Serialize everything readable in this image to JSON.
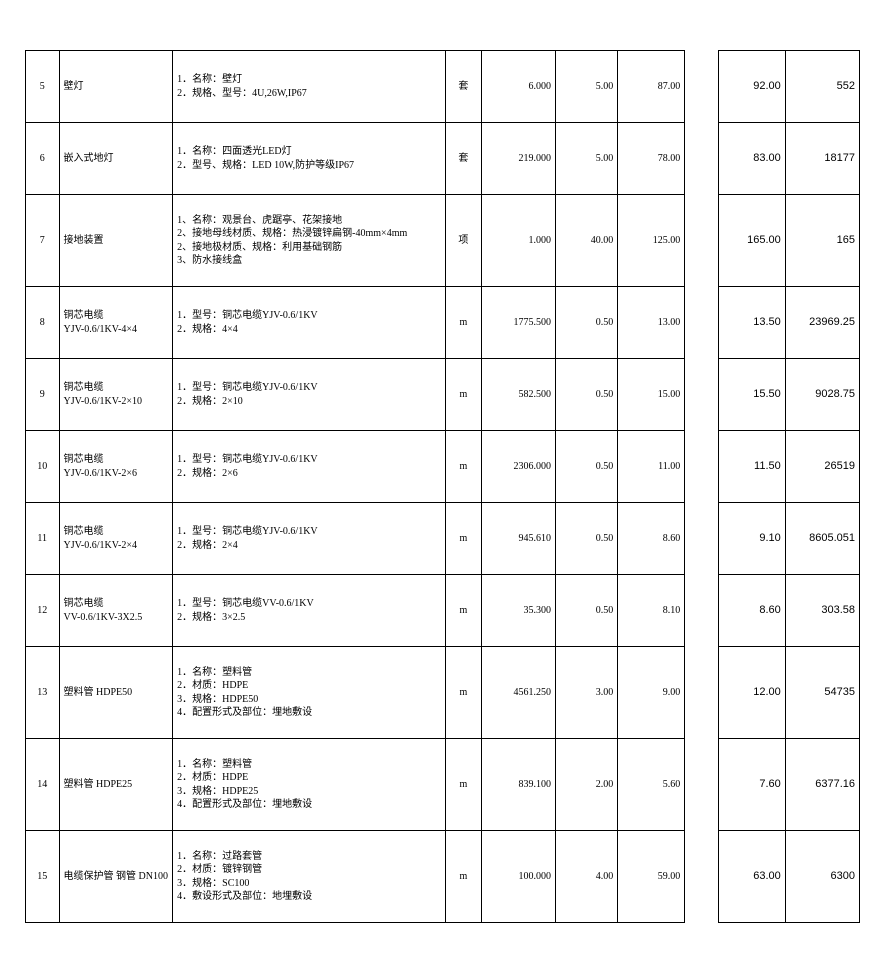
{
  "table": {
    "rows": [
      {
        "idx": "5",
        "name": "壁灯",
        "desc": "1．名称：壁灯\n2．规格、型号：4U,26W,IP67",
        "unit": "套",
        "qty": "6.000",
        "n1": "5.00",
        "n2": "87.00",
        "price": "92.00",
        "total": "552",
        "tall": false
      },
      {
        "idx": "6",
        "name": "嵌入式地灯",
        "desc": "1．名称：四面透光LED灯\n2．型号、规格：LED 10W,防护等级IP67",
        "unit": "套",
        "qty": "219.000",
        "n1": "5.00",
        "n2": "78.00",
        "price": "83.00",
        "total": "18177",
        "tall": false
      },
      {
        "idx": "7",
        "name": "接地装置",
        "desc": "1、名称：观景台、虎踞亭、花架接地\n2、接地母线材质、规格：热浸镀锌扁钢-40mm×4mm\n2、接地极材质、规格：利用基础钢筋\n3、防水接线盒",
        "unit": "项",
        "qty": "1.000",
        "n1": "40.00",
        "n2": "125.00",
        "price": "165.00",
        "total": "165",
        "tall": true
      },
      {
        "idx": "8",
        "name": "铜芯电缆\nYJV-0.6/1KV-4×4",
        "desc": "1．型号：铜芯电缆YJV-0.6/1KV\n2．规格：4×4",
        "unit": "m",
        "qty": "1775.500",
        "n1": "0.50",
        "n2": "13.00",
        "price": "13.50",
        "total": "23969.25",
        "tall": false
      },
      {
        "idx": "9",
        "name": "铜芯电缆\nYJV-0.6/1KV-2×10",
        "desc": "1．型号：铜芯电缆YJV-0.6/1KV\n2．规格：2×10",
        "unit": "m",
        "qty": "582.500",
        "n1": "0.50",
        "n2": "15.00",
        "price": "15.50",
        "total": "9028.75",
        "tall": false
      },
      {
        "idx": "10",
        "name": "铜芯电缆\nYJV-0.6/1KV-2×6",
        "desc": "1．型号：铜芯电缆YJV-0.6/1KV\n2．规格：2×6",
        "unit": "m",
        "qty": "2306.000",
        "n1": "0.50",
        "n2": "11.00",
        "price": "11.50",
        "total": "26519",
        "tall": false
      },
      {
        "idx": "11",
        "name": "铜芯电缆\nYJV-0.6/1KV-2×4",
        "desc": "1．型号：铜芯电缆YJV-0.6/1KV\n2．规格：2×4",
        "unit": "m",
        "qty": "945.610",
        "n1": "0.50",
        "n2": "8.60",
        "price": "9.10",
        "total": "8605.051",
        "tall": false
      },
      {
        "idx": "12",
        "name": "铜芯电缆\nVV-0.6/1KV-3X2.5",
        "desc": "1．型号：铜芯电缆VV-0.6/1KV\n2．规格：3×2.5",
        "unit": "m",
        "qty": "35.300",
        "n1": "0.50",
        "n2": "8.10",
        "price": "8.60",
        "total": "303.58",
        "tall": false
      },
      {
        "idx": "13",
        "name": "塑料管 HDPE50",
        "desc": "1．名称：塑料管\n2．材质：HDPE\n3．规格：HDPE50\n4．配置形式及部位：埋地敷设",
        "unit": "m",
        "qty": "4561.250",
        "n1": "3.00",
        "n2": "9.00",
        "price": "12.00",
        "total": "54735",
        "tall": true
      },
      {
        "idx": "14",
        "name": "塑料管 HDPE25",
        "desc": "1．名称：塑料管\n2．材质：HDPE\n3．规格：HDPE25\n4．配置形式及部位：埋地敷设",
        "unit": "m",
        "qty": "839.100",
        "n1": "2.00",
        "n2": "5.60",
        "price": "7.60",
        "total": "6377.16",
        "tall": true
      },
      {
        "idx": "15",
        "name": "电缆保护管 钢管 DN100",
        "desc": "1．名称：过路套管\n2．材质：镀锌钢管\n3．规格：SC100\n4．敷设形式及部位：地埋敷设",
        "unit": "m",
        "qty": "100.000",
        "n1": "4.00",
        "n2": "59.00",
        "price": "63.00",
        "total": "6300",
        "tall": true
      }
    ]
  }
}
